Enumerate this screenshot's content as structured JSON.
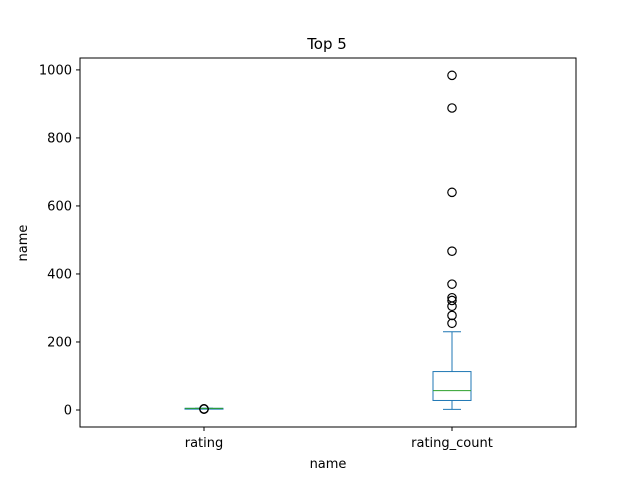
{
  "chart_data": {
    "type": "box",
    "title": "Top 5",
    "xlabel": "name",
    "ylabel": "name",
    "ylim": [
      -50,
      1035
    ],
    "yticks": [
      0,
      200,
      400,
      600,
      800,
      1000
    ],
    "categories": [
      "rating",
      "rating_count"
    ],
    "boxes": [
      {
        "name": "rating",
        "whisker_low": 3.9,
        "q1": 4.3,
        "median": 4.7,
        "q3": 4.9,
        "whisker_high": 5.0,
        "outliers": [
          2.5,
          3.0,
          3.4
        ]
      },
      {
        "name": "rating_count",
        "whisker_low": 2,
        "q1": 28,
        "median": 57,
        "q3": 113,
        "whisker_high": 230,
        "outliers": [
          255,
          278,
          305,
          322,
          330,
          370,
          467,
          640,
          888,
          984
        ]
      }
    ],
    "colors": {
      "box": "#1f77b4",
      "median": "#2ca02c",
      "outlier": "#000000"
    },
    "grid": false,
    "legend": "none"
  }
}
